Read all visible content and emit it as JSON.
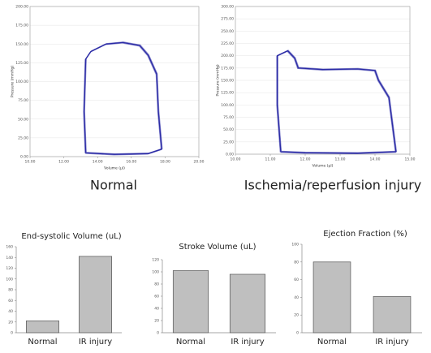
{
  "chart_data": [
    {
      "type": "line",
      "caption": "Normal",
      "xlabel": "Volume (µl)",
      "ylabel": "Pressure (mmHg)",
      "xlim": [
        10,
        20
      ],
      "xticks": [
        {
          "value": 10,
          "label": "10.00"
        },
        {
          "value": 12,
          "label": "12.00"
        },
        {
          "value": 14,
          "label": "14.00"
        },
        {
          "value": 16,
          "label": "16.00"
        },
        {
          "value": 18,
          "label": "18.00"
        },
        {
          "value": 20,
          "label": "20.00"
        }
      ],
      "ylim": [
        0,
        200
      ],
      "yticks": [
        {
          "value": 0,
          "label": "0.00"
        },
        {
          "value": 25,
          "label": "25.00"
        },
        {
          "value": 50,
          "label": "50.00"
        },
        {
          "value": 75,
          "label": "75.00"
        },
        {
          "value": 100,
          "label": "100.00"
        },
        {
          "value": 125,
          "label": "125.00"
        },
        {
          "value": 150,
          "label": "150.00"
        },
        {
          "value": 175,
          "label": "175.00"
        },
        {
          "value": 200,
          "label": "200.00"
        }
      ],
      "grid": true,
      "series": [
        {
          "color": "#2b2ba6",
          "x": [
            13.3,
            13.2,
            13.3,
            13.6,
            14.5,
            15.5,
            16.5,
            17.0,
            17.5,
            17.6,
            17.8,
            17.0,
            15.0,
            13.3
          ],
          "y": [
            5,
            60,
            130,
            140,
            150,
            152,
            148,
            135,
            110,
            60,
            10,
            4,
            3,
            5
          ]
        }
      ]
    },
    {
      "type": "line",
      "caption": "Ischemia/reperfusion injury",
      "xlabel": "Volume (µl)",
      "ylabel": "Pressure (mmHg)",
      "xlim": [
        10,
        15
      ],
      "xticks": [
        {
          "value": 10,
          "label": "10.00"
        },
        {
          "value": 11,
          "label": "11.00"
        },
        {
          "value": 12,
          "label": "12.00"
        },
        {
          "value": 13,
          "label": "13.00"
        },
        {
          "value": 14,
          "label": "14.00"
        },
        {
          "value": 15,
          "label": "15.00"
        }
      ],
      "ylim": [
        0,
        300
      ],
      "yticks": [
        {
          "value": 0,
          "label": "0.00"
        },
        {
          "value": 25,
          "label": "25.00"
        },
        {
          "value": 50,
          "label": "50.00"
        },
        {
          "value": 75,
          "label": "75.00"
        },
        {
          "value": 100,
          "label": "100.00"
        },
        {
          "value": 125,
          "label": "125.00"
        },
        {
          "value": 150,
          "label": "150.00"
        },
        {
          "value": 175,
          "label": "175.00"
        },
        {
          "value": 200,
          "label": "200.00"
        },
        {
          "value": 225,
          "label": "225.00"
        },
        {
          "value": 250,
          "label": "250.00"
        },
        {
          "value": 275,
          "label": "275.00"
        },
        {
          "value": 300,
          "label": "300.00"
        }
      ],
      "grid": true,
      "series": [
        {
          "color": "#2b2ba6",
          "x": [
            11.3,
            11.2,
            11.2,
            11.5,
            11.7,
            11.8,
            12.5,
            13.5,
            14.0,
            14.1,
            14.4,
            14.5,
            14.6,
            13.5,
            12.0,
            11.3
          ],
          "y": [
            5,
            100,
            200,
            210,
            195,
            175,
            172,
            173,
            170,
            150,
            115,
            60,
            5,
            2,
            3,
            5
          ]
        }
      ]
    },
    {
      "type": "bar",
      "title": "End-systolic Volume (uL)",
      "categories": [
        "Normal",
        "IR injury"
      ],
      "values": [
        22,
        142
      ],
      "color": "#bfbfbf",
      "ylim": [
        0,
        160
      ],
      "yticks": [
        0,
        20,
        40,
        60,
        80,
        100,
        120,
        140,
        160
      ]
    },
    {
      "type": "bar",
      "title": "Stroke Volume (uL)",
      "categories": [
        "Normal",
        "IR injury"
      ],
      "values": [
        102,
        96
      ],
      "color": "#bfbfbf",
      "ylim": [
        0,
        120
      ],
      "yticks": [
        0,
        20,
        40,
        60,
        80,
        100,
        120
      ]
    },
    {
      "type": "bar",
      "title": "Ejection Fraction (%)",
      "categories": [
        "Normal",
        "IR injury"
      ],
      "values": [
        80,
        41
      ],
      "color": "#bfbfbf",
      "ylim": [
        0,
        100
      ],
      "yticks": [
        0,
        20,
        40,
        60,
        80,
        100
      ]
    }
  ]
}
